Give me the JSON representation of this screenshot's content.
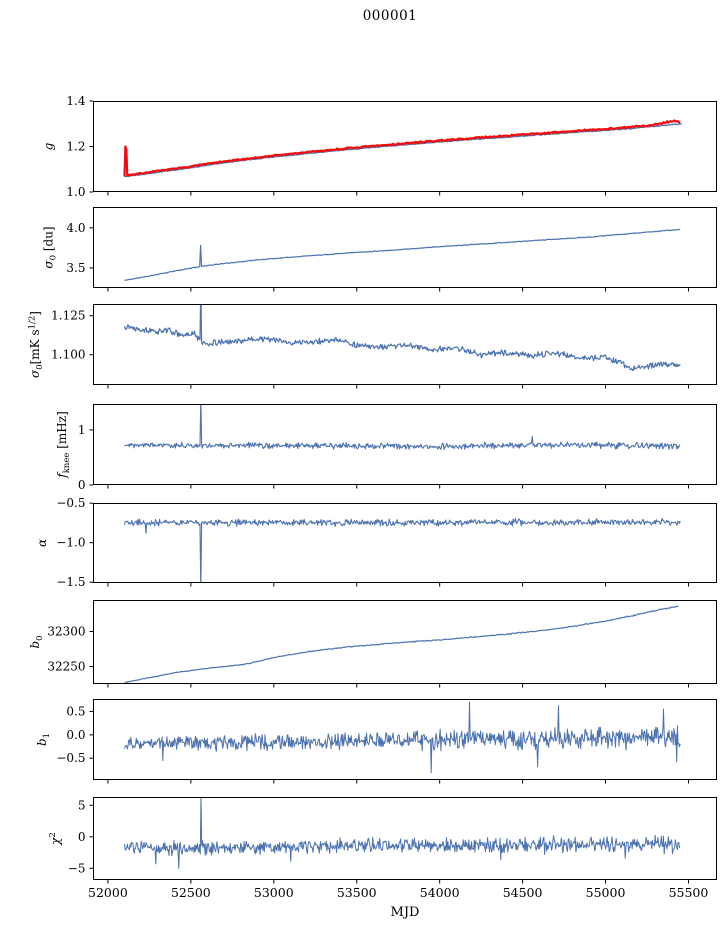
{
  "chart_data": {
    "type": "line",
    "title": "000001",
    "xlabel": "MJD",
    "xlim": [
      51910,
      55672
    ],
    "grid": false,
    "legend": "none",
    "xticks": [
      {
        "v": 52000,
        "l": "52000"
      },
      {
        "v": 52500,
        "l": "52500"
      },
      {
        "v": 53000,
        "l": "53000"
      },
      {
        "v": 53500,
        "l": "53500"
      },
      {
        "v": 54000,
        "l": "54000"
      },
      {
        "v": 54500,
        "l": "54500"
      },
      {
        "v": 55000,
        "l": "55000"
      },
      {
        "v": 55500,
        "l": "55500"
      }
    ],
    "colors": {
      "blue": "#4c72b0",
      "red": "#f20d0d",
      "spine": "#000000",
      "background": "#ffffff"
    },
    "panels": [
      {
        "name": "g",
        "ylabel": [
          {
            "t": "g",
            "i": true
          }
        ],
        "ylim": [
          1.0,
          1.4
        ],
        "yticks": [
          {
            "v": 1.0,
            "l": "1.0"
          },
          {
            "v": 1.2,
            "l": "1.2"
          },
          {
            "v": 1.4,
            "l": "1.4"
          }
        ],
        "series": [
          {
            "name": "g-blue",
            "color": "blue",
            "lw": 1.3,
            "n": 600,
            "x0": 52100,
            "x1": 55460,
            "noise": [
              0.0012,
              0.0018
            ],
            "seed": 3,
            "anchors": [
              [
                52100,
                1.068
              ],
              [
                52200,
                1.076
              ],
              [
                52300,
                1.086
              ],
              [
                52450,
                1.101
              ],
              [
                52600,
                1.118
              ],
              [
                52800,
                1.137
              ],
              [
                53000,
                1.154
              ],
              [
                53200,
                1.169
              ],
              [
                53400,
                1.183
              ],
              [
                53600,
                1.196
              ],
              [
                53800,
                1.208
              ],
              [
                54000,
                1.22
              ],
              [
                54200,
                1.231
              ],
              [
                54400,
                1.241
              ],
              [
                54600,
                1.251
              ],
              [
                54800,
                1.261
              ],
              [
                55000,
                1.271
              ],
              [
                55150,
                1.279
              ],
              [
                55300,
                1.289
              ],
              [
                55380,
                1.295
              ],
              [
                55460,
                1.3
              ]
            ],
            "spikes": []
          },
          {
            "name": "g-red",
            "color": "red",
            "lw": 2.2,
            "n": 600,
            "x0": 52100,
            "x1": 55450,
            "noise": [
              0.002,
              0.0028
            ],
            "seed": 7,
            "anchors": [
              [
                52100,
                1.072
              ],
              [
                52200,
                1.082
              ],
              [
                52300,
                1.092
              ],
              [
                52450,
                1.107
              ],
              [
                52600,
                1.124
              ],
              [
                52800,
                1.143
              ],
              [
                53000,
                1.16
              ],
              [
                53200,
                1.175
              ],
              [
                53400,
                1.189
              ],
              [
                53600,
                1.202
              ],
              [
                53800,
                1.214
              ],
              [
                54000,
                1.226
              ],
              [
                54200,
                1.237
              ],
              [
                54400,
                1.247
              ],
              [
                54600,
                1.257
              ],
              [
                54800,
                1.267
              ],
              [
                55000,
                1.277
              ],
              [
                55150,
                1.285
              ],
              [
                55300,
                1.296
              ],
              [
                55360,
                1.307
              ],
              [
                55420,
                1.313
              ],
              [
                55450,
                1.306
              ]
            ],
            "spikes": [
              [
                52106,
                1.2
              ],
              [
                52112,
                1.185
              ]
            ]
          }
        ]
      },
      {
        "name": "sigma0-du",
        "ylabel": [
          {
            "t": "σ",
            "i": true
          },
          {
            "t": "0",
            "sub": true
          },
          {
            "t": " [du]"
          }
        ],
        "ylim": [
          3.25,
          4.26
        ],
        "yticks": [
          {
            "v": 3.5,
            "l": "3.5"
          },
          {
            "v": 4.0,
            "l": "4.0"
          }
        ],
        "series": [
          {
            "name": "sigma0-du-trace",
            "color": "blue",
            "lw": 1.2,
            "n": 600,
            "x0": 52100,
            "x1": 55450,
            "noise": [
              0.0035,
              0.0035
            ],
            "seed": 11,
            "anchors": [
              [
                52100,
                3.345
              ],
              [
                52250,
                3.4
              ],
              [
                52400,
                3.46
              ],
              [
                52560,
                3.52
              ],
              [
                52700,
                3.555
              ],
              [
                52900,
                3.6
              ],
              [
                53100,
                3.635
              ],
              [
                53300,
                3.665
              ],
              [
                53500,
                3.695
              ],
              [
                53700,
                3.72
              ],
              [
                54000,
                3.765
              ],
              [
                54300,
                3.805
              ],
              [
                54600,
                3.845
              ],
              [
                54900,
                3.885
              ],
              [
                55100,
                3.92
              ],
              [
                55300,
                3.955
              ],
              [
                55450,
                3.98
              ]
            ],
            "spikes": [
              [
                52560,
                3.78
              ]
            ]
          }
        ]
      },
      {
        "name": "sigma0-mks",
        "ylabel": [
          {
            "t": "σ",
            "i": true
          },
          {
            "t": "0",
            "sub": true
          },
          {
            "t": "[mK s"
          },
          {
            "t": "1/2",
            "sup": true
          },
          {
            "t": "]"
          }
        ],
        "ylim": [
          1.0806,
          1.1325
        ],
        "yticks": [
          {
            "v": 1.1,
            "l": "1.100"
          },
          {
            "v": 1.125,
            "l": "1.125"
          }
        ],
        "series": [
          {
            "name": "sigma0-mks-trace",
            "color": "blue",
            "lw": 1.2,
            "n": 700,
            "x0": 52100,
            "x1": 55450,
            "noise": [
              0.0013,
              0.0013
            ],
            "seed": 13,
            "anchors": [
              [
                52100,
                1.1185
              ],
              [
                52200,
                1.1165
              ],
              [
                52280,
                1.1145
              ],
              [
                52360,
                1.116
              ],
              [
                52450,
                1.112
              ],
              [
                52520,
                1.1135
              ],
              [
                52575,
                1.107
              ],
              [
                52700,
                1.108
              ],
              [
                52850,
                1.1095
              ],
              [
                52950,
                1.1105
              ],
              [
                53100,
                1.1075
              ],
              [
                53250,
                1.1085
              ],
              [
                53400,
                1.1095
              ],
              [
                53500,
                1.106
              ],
              [
                53650,
                1.1045
              ],
              [
                53800,
                1.1065
              ],
              [
                53950,
                1.103
              ],
              [
                54100,
                1.1045
              ],
              [
                54250,
                1.1
              ],
              [
                54400,
                1.1015
              ],
              [
                54550,
                1.0995
              ],
              [
                54700,
                1.101
              ],
              [
                54850,
                1.098
              ],
              [
                55000,
                1.0985
              ],
              [
                55080,
                1.0955
              ],
              [
                55160,
                1.091
              ],
              [
                55250,
                1.0925
              ],
              [
                55350,
                1.094
              ],
              [
                55450,
                1.0935
              ]
            ],
            "spikes": [
              [
                52560,
                1.145
              ]
            ]
          }
        ]
      },
      {
        "name": "fknee",
        "ylabel": [
          {
            "t": "f",
            "i": true
          },
          {
            "t": "knee",
            "sub": true
          },
          {
            "t": " [mHz]"
          }
        ],
        "ylim": [
          0,
          1.47
        ],
        "yticks": [
          {
            "v": 0,
            "l": "0"
          },
          {
            "v": 1,
            "l": "1"
          }
        ],
        "series": [
          {
            "name": "fknee-trace",
            "color": "blue",
            "lw": 1.1,
            "n": 700,
            "x0": 52100,
            "x1": 55450,
            "noise": [
              0.036,
              0.042
            ],
            "seed": 17,
            "anchors": [
              [
                52100,
                0.73
              ],
              [
                53000,
                0.71
              ],
              [
                54000,
                0.7
              ],
              [
                54560,
                0.73
              ],
              [
                55450,
                0.71
              ]
            ],
            "spikes": [
              [
                52560,
                1.6
              ],
              [
                54560,
                0.88
              ]
            ]
          }
        ]
      },
      {
        "name": "alpha",
        "ylabel": [
          {
            "t": "α",
            "i": true
          }
        ],
        "ylim": [
          -1.51,
          -0.498
        ],
        "yticks": [
          {
            "v": -0.5,
            "l": "−0.5"
          },
          {
            "v": -1.0,
            "l": "−1.0"
          },
          {
            "v": -1.5,
            "l": "−1.5"
          }
        ],
        "series": [
          {
            "name": "alpha-trace",
            "color": "blue",
            "lw": 1.1,
            "n": 700,
            "x0": 52100,
            "x1": 55450,
            "noise": [
              0.028,
              0.032
            ],
            "seed": 19,
            "anchors": [
              [
                52100,
                -0.745
              ],
              [
                53500,
                -0.748
              ],
              [
                55450,
                -0.74
              ]
            ],
            "spikes": [
              [
                52560,
                -1.62
              ],
              [
                52230,
                -0.88
              ]
            ]
          }
        ]
      },
      {
        "name": "b0",
        "ylabel": [
          {
            "t": "b",
            "i": true
          },
          {
            "t": "0",
            "sub": true
          }
        ],
        "ylim": [
          32225,
          32345
        ],
        "yticks": [
          {
            "v": 32250,
            "l": "32250"
          },
          {
            "v": 32300,
            "l": "32300"
          }
        ],
        "series": [
          {
            "name": "b0-trace",
            "color": "blue",
            "lw": 1.2,
            "n": 500,
            "x0": 52100,
            "x1": 55440,
            "noise": [
              0.4,
              0.6
            ],
            "seed": 23,
            "anchors": [
              [
                52100,
                32227
              ],
              [
                52250,
                32234
              ],
              [
                52400,
                32241
              ],
              [
                52550,
                32246
              ],
              [
                52700,
                32250
              ],
              [
                52820,
                32253
              ],
              [
                52900,
                32257
              ],
              [
                53000,
                32263
              ],
              [
                53150,
                32269
              ],
              [
                53300,
                32274
              ],
              [
                53450,
                32278
              ],
              [
                53600,
                32281
              ],
              [
                53800,
                32285
              ],
              [
                54000,
                32288
              ],
              [
                54200,
                32292
              ],
              [
                54400,
                32296
              ],
              [
                54600,
                32301
              ],
              [
                54800,
                32307
              ],
              [
                55000,
                32315
              ],
              [
                55150,
                32322
              ],
              [
                55300,
                32330
              ],
              [
                55440,
                32336
              ]
            ],
            "spikes": []
          }
        ]
      },
      {
        "name": "b1",
        "ylabel": [
          {
            "t": "b",
            "i": true
          },
          {
            "t": "1",
            "sub": true
          }
        ],
        "ylim": [
          -0.965,
          0.766
        ],
        "yticks": [
          {
            "v": -0.5,
            "l": "−0.5"
          },
          {
            "v": 0.0,
            "l": "0.0"
          },
          {
            "v": 0.5,
            "l": "0.5"
          }
        ],
        "series": [
          {
            "name": "b1-trace",
            "color": "blue",
            "lw": 1.0,
            "n": 800,
            "x0": 52100,
            "x1": 55450,
            "noise": [
              0.1,
              0.17
            ],
            "seed": 29,
            "anchors": [
              [
                52100,
                -0.18
              ],
              [
                53200,
                -0.15
              ],
              [
                54200,
                -0.1
              ],
              [
                55450,
                -0.05
              ]
            ],
            "spikes": [
              [
                52330,
                -0.55
              ],
              [
                53950,
                -0.81
              ],
              [
                54180,
                0.7
              ],
              [
                54590,
                -0.68
              ],
              [
                54715,
                0.62
              ],
              [
                55350,
                0.55
              ],
              [
                55430,
                -0.58
              ]
            ]
          }
        ]
      },
      {
        "name": "chi2",
        "ylabel": [
          {
            "t": "χ",
            "i": true
          },
          {
            "t": "2",
            "sup": true
          }
        ],
        "ylim": [
          -6.85,
          6.31
        ],
        "yticks": [
          {
            "v": -5,
            "l": "−5"
          },
          {
            "v": 0,
            "l": "0"
          },
          {
            "v": 5,
            "l": "5"
          }
        ],
        "series": [
          {
            "name": "chi2-trace",
            "color": "blue",
            "lw": 1.0,
            "n": 800,
            "x0": 52100,
            "x1": 55450,
            "noise": [
              0.75,
              0.95
            ],
            "seed": 31,
            "anchors": [
              [
                52100,
                -1.8
              ],
              [
                53000,
                -1.6
              ],
              [
                54000,
                -1.4
              ],
              [
                55450,
                -1.2
              ]
            ],
            "spikes": [
              [
                52560,
                6.8
              ],
              [
                52290,
                -4.3
              ],
              [
                52425,
                -5.0
              ],
              [
                53100,
                -3.9
              ],
              [
                54370,
                -3.6
              ],
              [
                55120,
                -3.4
              ]
            ]
          }
        ]
      }
    ]
  }
}
